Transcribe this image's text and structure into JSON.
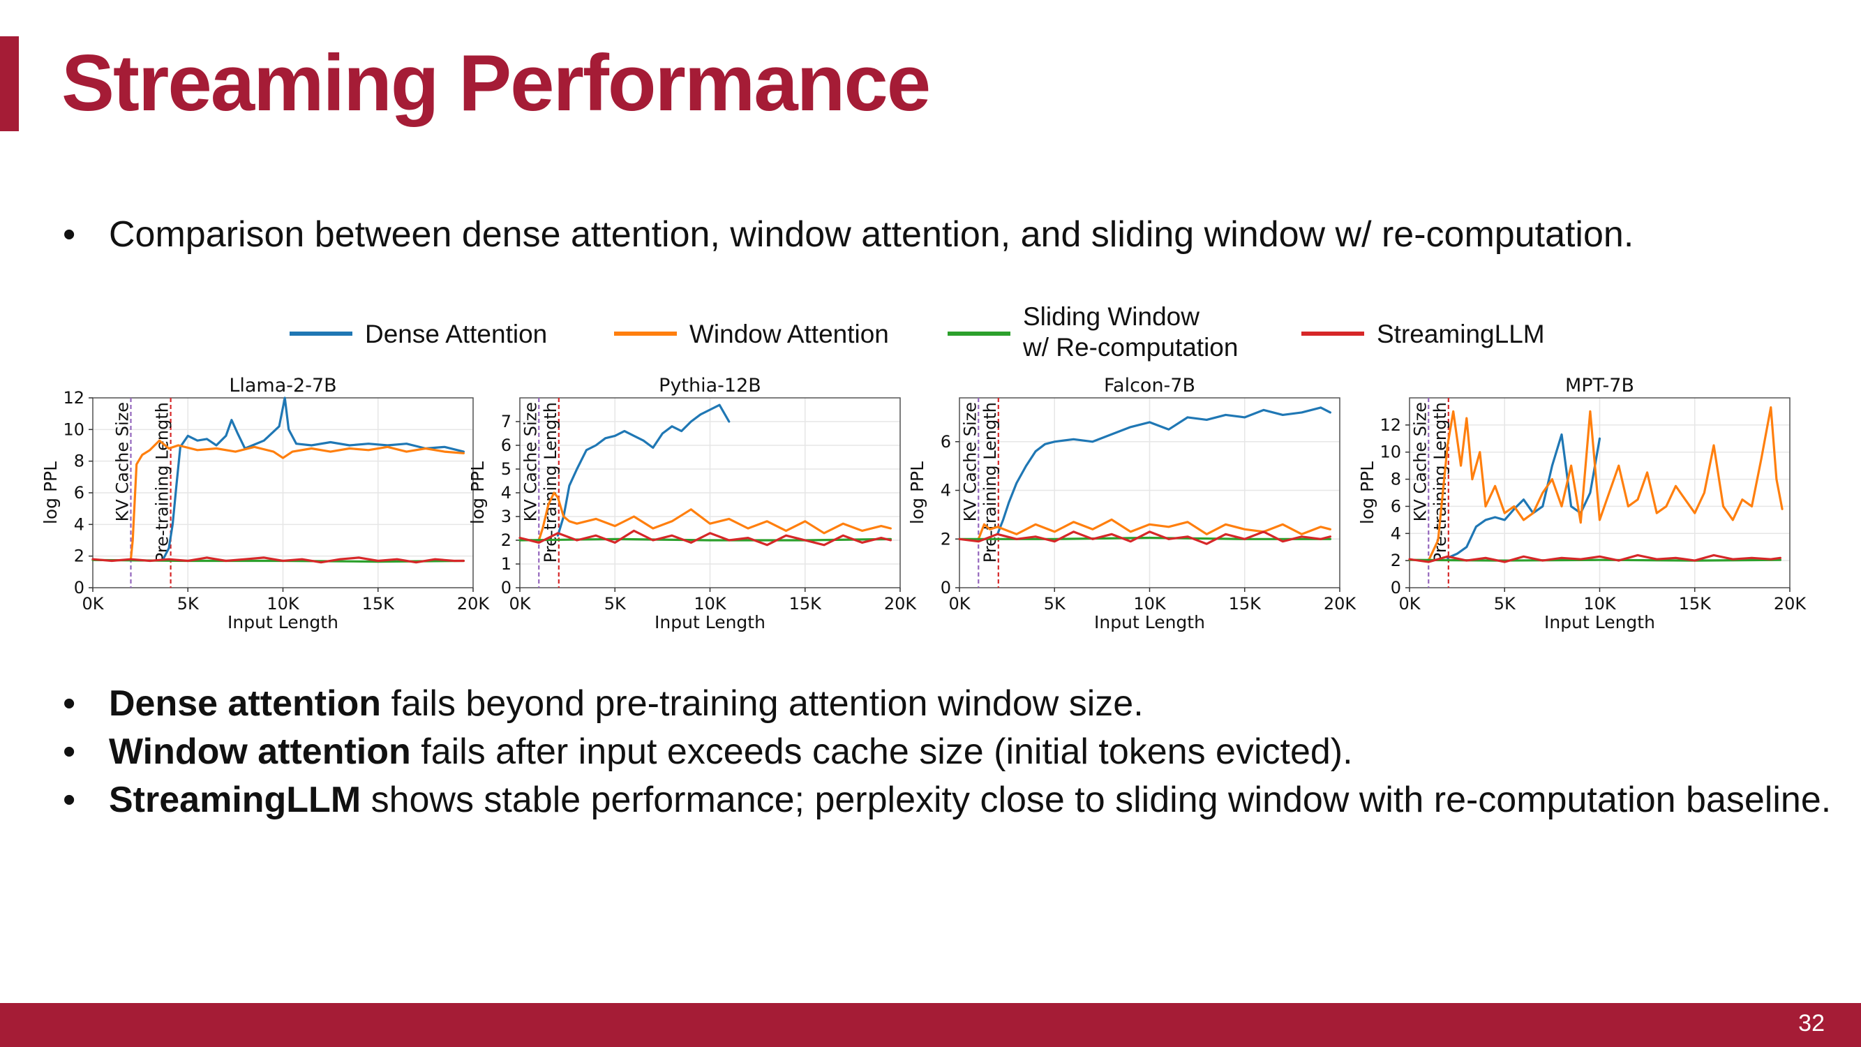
{
  "slide": {
    "title": "Streaming Performance",
    "intro_bullet": "Comparison between dense attention, window attention, and sliding window w/ re-computation.",
    "bullets": [
      {
        "bold": "Dense attention",
        "rest": " fails beyond pre-training attention window size."
      },
      {
        "bold": "Window attention",
        "rest": " fails after input exceeds cache size (initial tokens evicted)."
      },
      {
        "bold": "StreamingLLM",
        "rest": " shows stable performance; perplexity close to sliding window with re-computation baseline."
      }
    ],
    "page_number": "32",
    "bullet_char": "•"
  },
  "legend": [
    {
      "label": "Dense Attention",
      "color": "#1f77b4"
    },
    {
      "label": "Window Attention",
      "color": "#ff7f0e"
    },
    {
      "label": "Sliding Window\nw/ Re-computation",
      "color": "#2ca02c"
    },
    {
      "label": "StreamingLLM",
      "color": "#d62728"
    }
  ],
  "colors": {
    "accent": "#a51c36",
    "kv_line": "#9467bd",
    "pretrain_line": "#d62728",
    "grid": "#e6e6e6"
  },
  "chart_data": [
    {
      "type": "line",
      "title": "Llama-2-7B",
      "xlabel": "Input Length",
      "ylabel": "log PPL",
      "xlim": [
        0,
        20000
      ],
      "ylim": [
        0,
        12
      ],
      "xticks": [
        0,
        5000,
        10000,
        15000,
        20000
      ],
      "xtick_labels": [
        "0K",
        "5K",
        "10K",
        "15K",
        "20K"
      ],
      "yticks": [
        0,
        2,
        4,
        6,
        8,
        10,
        12
      ],
      "grid": true,
      "vlines": [
        {
          "x": 2000,
          "label": "KV Cache Size",
          "color": "#9467bd"
        },
        {
          "x": 4096,
          "label": "Pre-training Length",
          "color": "#d62728"
        }
      ],
      "series": [
        {
          "name": "Dense Attention",
          "color": "#1f77b4",
          "x": [
            3700,
            4000,
            4200,
            4400,
            4600,
            5000,
            5500,
            6000,
            6500,
            7000,
            7300,
            7600,
            8000,
            9000,
            9800,
            10100,
            10300,
            10700,
            11500,
            12500,
            13500,
            14500,
            15500,
            16500,
            17500,
            18500,
            19500
          ],
          "y": [
            1.8,
            2.5,
            4.0,
            6.5,
            8.9,
            9.6,
            9.3,
            9.4,
            9.0,
            9.6,
            10.6,
            9.8,
            8.8,
            9.3,
            10.2,
            12.0,
            10.0,
            9.1,
            9.0,
            9.2,
            9.0,
            9.1,
            9.0,
            9.1,
            8.8,
            8.9,
            8.6
          ]
        },
        {
          "name": "Window Attention",
          "color": "#ff7f0e",
          "x": [
            2000,
            2100,
            2300,
            2600,
            3000,
            3500,
            4000,
            4500,
            5500,
            6500,
            7500,
            8500,
            9500,
            10000,
            10500,
            11500,
            12500,
            13500,
            14500,
            15500,
            16500,
            17500,
            18500,
            19500
          ],
          "y": [
            1.8,
            3.0,
            7.8,
            8.4,
            8.7,
            9.3,
            8.8,
            9.0,
            8.7,
            8.8,
            8.6,
            8.9,
            8.6,
            8.2,
            8.6,
            8.8,
            8.6,
            8.8,
            8.7,
            8.9,
            8.6,
            8.8,
            8.6,
            8.5
          ]
        },
        {
          "name": "Sliding Window w/ Re-computation",
          "color": "#2ca02c",
          "x": [
            0,
            5000,
            10000,
            15000,
            19500
          ],
          "y": [
            1.75,
            1.7,
            1.7,
            1.65,
            1.7
          ]
        },
        {
          "name": "StreamingLLM",
          "color": "#d62728",
          "x": [
            0,
            1000,
            2000,
            3000,
            4000,
            5000,
            6000,
            7000,
            8000,
            9000,
            10000,
            11000,
            12000,
            13000,
            14000,
            15000,
            16000,
            17000,
            18000,
            19000,
            19500
          ],
          "y": [
            1.8,
            1.7,
            1.8,
            1.7,
            1.8,
            1.7,
            1.9,
            1.7,
            1.8,
            1.9,
            1.7,
            1.8,
            1.6,
            1.8,
            1.9,
            1.7,
            1.8,
            1.6,
            1.8,
            1.7,
            1.7
          ]
        }
      ]
    },
    {
      "type": "line",
      "title": "Pythia-12B",
      "xlabel": "Input Length",
      "ylabel": "log PPL",
      "xlim": [
        0,
        20000
      ],
      "ylim": [
        0,
        8
      ],
      "xticks": [
        0,
        5000,
        10000,
        15000,
        20000
      ],
      "xtick_labels": [
        "0K",
        "5K",
        "10K",
        "15K",
        "20K"
      ],
      "yticks": [
        0,
        1,
        2,
        3,
        4,
        5,
        6,
        7
      ],
      "grid": true,
      "vlines": [
        {
          "x": 1000,
          "label": "KV Cache Size",
          "color": "#9467bd"
        },
        {
          "x": 2048,
          "label": "Pre-training Length",
          "color": "#d62728"
        }
      ],
      "series": [
        {
          "name": "Dense Attention",
          "color": "#1f77b4",
          "x": [
            2000,
            2300,
            2600,
            3000,
            3500,
            4000,
            4500,
            5000,
            5500,
            6000,
            6500,
            7000,
            7500,
            8000,
            8500,
            9000,
            9500,
            10000,
            10500,
            11000
          ],
          "y": [
            2.2,
            3.0,
            4.3,
            5.0,
            5.8,
            6.0,
            6.3,
            6.4,
            6.6,
            6.4,
            6.2,
            5.9,
            6.5,
            6.8,
            6.6,
            7.0,
            7.3,
            7.5,
            7.7,
            7.0
          ]
        },
        {
          "name": "Window Attention",
          "color": "#ff7f0e",
          "x": [
            1000,
            1200,
            1500,
            1800,
            2000,
            2300,
            2600,
            3000,
            4000,
            5000,
            6000,
            7000,
            8000,
            9000,
            10000,
            11000,
            12000,
            13000,
            14000,
            15000,
            16000,
            17000,
            18000,
            19000,
            19500
          ],
          "y": [
            2.0,
            2.5,
            3.5,
            4.0,
            3.8,
            3.0,
            2.8,
            2.7,
            2.9,
            2.6,
            3.0,
            2.5,
            2.8,
            3.3,
            2.7,
            2.9,
            2.5,
            2.8,
            2.4,
            2.8,
            2.3,
            2.7,
            2.4,
            2.6,
            2.5
          ]
        },
        {
          "name": "Sliding Window w/ Re-computation",
          "color": "#2ca02c",
          "x": [
            0,
            5000,
            10000,
            15000,
            19500
          ],
          "y": [
            2.0,
            2.05,
            2.0,
            2.0,
            2.05
          ]
        },
        {
          "name": "StreamingLLM",
          "color": "#d62728",
          "x": [
            0,
            1000,
            2000,
            3000,
            4000,
            5000,
            6000,
            7000,
            8000,
            9000,
            10000,
            11000,
            12000,
            13000,
            14000,
            15000,
            16000,
            17000,
            18000,
            19000,
            19500
          ],
          "y": [
            2.1,
            1.9,
            2.3,
            2.0,
            2.2,
            1.9,
            2.4,
            2.0,
            2.2,
            1.9,
            2.3,
            2.0,
            2.1,
            1.8,
            2.2,
            2.0,
            1.8,
            2.2,
            1.9,
            2.1,
            2.0
          ]
        }
      ]
    },
    {
      "type": "line",
      "title": "Falcon-7B",
      "xlabel": "Input Length",
      "ylabel": "log PPL",
      "xlim": [
        0,
        20000
      ],
      "ylim": [
        0,
        7.8
      ],
      "xticks": [
        0,
        5000,
        10000,
        15000,
        20000
      ],
      "xtick_labels": [
        "0K",
        "5K",
        "10K",
        "15K",
        "20K"
      ],
      "yticks": [
        0,
        2,
        4,
        6
      ],
      "grid": true,
      "vlines": [
        {
          "x": 1000,
          "label": "KV Cache Size",
          "color": "#9467bd"
        },
        {
          "x": 2048,
          "label": "Pre-training Length",
          "color": "#d62728"
        }
      ],
      "series": [
        {
          "name": "Dense Attention",
          "color": "#1f77b4",
          "x": [
            2000,
            2300,
            2600,
            3000,
            3500,
            4000,
            4500,
            5000,
            6000,
            7000,
            8000,
            9000,
            10000,
            11000,
            12000,
            13000,
            14000,
            15000,
            16000,
            17000,
            18000,
            19000,
            19500
          ],
          "y": [
            2.2,
            2.8,
            3.5,
            4.3,
            5.0,
            5.6,
            5.9,
            6.0,
            6.1,
            6.0,
            6.3,
            6.6,
            6.8,
            6.5,
            7.0,
            6.9,
            7.1,
            7.0,
            7.3,
            7.1,
            7.2,
            7.4,
            7.2
          ]
        },
        {
          "name": "Window Attention",
          "color": "#ff7f0e",
          "x": [
            1000,
            1300,
            1600,
            2000,
            3000,
            4000,
            5000,
            6000,
            7000,
            8000,
            9000,
            10000,
            11000,
            12000,
            13000,
            14000,
            15000,
            16000,
            17000,
            18000,
            19000,
            19500
          ],
          "y": [
            2.0,
            2.6,
            2.4,
            2.5,
            2.2,
            2.6,
            2.3,
            2.7,
            2.4,
            2.8,
            2.3,
            2.6,
            2.5,
            2.7,
            2.2,
            2.6,
            2.4,
            2.3,
            2.6,
            2.2,
            2.5,
            2.4
          ]
        },
        {
          "name": "Sliding Window w/ Re-computation",
          "color": "#2ca02c",
          "x": [
            0,
            5000,
            10000,
            15000,
            19500
          ],
          "y": [
            2.0,
            2.0,
            2.05,
            2.0,
            2.0
          ]
        },
        {
          "name": "StreamingLLM",
          "color": "#d62728",
          "x": [
            0,
            1000,
            2000,
            3000,
            4000,
            5000,
            6000,
            7000,
            8000,
            9000,
            10000,
            11000,
            12000,
            13000,
            14000,
            15000,
            16000,
            17000,
            18000,
            19000,
            19500
          ],
          "y": [
            2.0,
            1.9,
            2.2,
            2.0,
            2.1,
            1.9,
            2.3,
            2.0,
            2.2,
            1.9,
            2.3,
            2.0,
            2.1,
            1.8,
            2.2,
            2.0,
            2.3,
            1.9,
            2.1,
            2.0,
            2.1
          ]
        }
      ]
    },
    {
      "type": "line",
      "title": "MPT-7B",
      "xlabel": "Input Length",
      "ylabel": "log PPL",
      "xlim": [
        0,
        20000
      ],
      "ylim": [
        0,
        14
      ],
      "xticks": [
        0,
        5000,
        10000,
        15000,
        20000
      ],
      "xtick_labels": [
        "0K",
        "5K",
        "10K",
        "15K",
        "20K"
      ],
      "yticks": [
        0,
        2,
        4,
        6,
        8,
        10,
        12
      ],
      "grid": true,
      "vlines": [
        {
          "x": 1000,
          "label": "KV Cache Size",
          "color": "#9467bd"
        },
        {
          "x": 2048,
          "label": "Pre-training Length",
          "color": "#d62728"
        }
      ],
      "series": [
        {
          "name": "Dense Attention",
          "color": "#1f77b4",
          "x": [
            2000,
            2500,
            3000,
            3500,
            4000,
            4500,
            5000,
            5500,
            6000,
            6500,
            7000,
            7500,
            8000,
            8500,
            9000,
            9500,
            10000
          ],
          "y": [
            2.2,
            2.5,
            3.0,
            4.5,
            5.0,
            5.2,
            5.0,
            5.8,
            6.5,
            5.5,
            6.0,
            9.0,
            11.3,
            6.0,
            5.5,
            7.0,
            11.0
          ]
        },
        {
          "name": "Window Attention",
          "color": "#ff7f0e",
          "x": [
            1000,
            1500,
            2000,
            2300,
            2700,
            3000,
            3300,
            3700,
            4000,
            4500,
            5000,
            5500,
            6000,
            6500,
            7000,
            7500,
            8000,
            8500,
            9000,
            9500,
            10000,
            10500,
            11000,
            11500,
            12000,
            12500,
            13000,
            13500,
            14000,
            14500,
            15000,
            15500,
            16000,
            16500,
            17000,
            17500,
            18000,
            18500,
            19000,
            19300,
            19600
          ],
          "y": [
            2.0,
            3.5,
            10.5,
            13.0,
            9.0,
            12.5,
            8.0,
            10.0,
            6.0,
            7.5,
            5.5,
            6.0,
            5.0,
            5.5,
            7.0,
            8.0,
            6.0,
            9.0,
            4.8,
            13.0,
            5.0,
            7.0,
            9.0,
            6.0,
            6.5,
            8.5,
            5.5,
            6.0,
            7.5,
            6.5,
            5.5,
            7.0,
            10.5,
            6.0,
            5.0,
            6.5,
            6.0,
            9.5,
            13.3,
            8.0,
            5.8
          ]
        },
        {
          "name": "Sliding Window w/ Re-computation",
          "color": "#2ca02c",
          "x": [
            0,
            5000,
            10000,
            15000,
            19500
          ],
          "y": [
            2.05,
            2.0,
            2.05,
            2.0,
            2.05
          ]
        },
        {
          "name": "StreamingLLM",
          "color": "#d62728",
          "x": [
            0,
            1000,
            2000,
            3000,
            4000,
            5000,
            6000,
            7000,
            8000,
            9000,
            10000,
            11000,
            12000,
            13000,
            14000,
            15000,
            16000,
            17000,
            18000,
            19000,
            19500
          ],
          "y": [
            2.1,
            1.9,
            2.3,
            2.0,
            2.2,
            1.9,
            2.3,
            2.0,
            2.2,
            2.1,
            2.3,
            2.0,
            2.4,
            2.1,
            2.2,
            2.0,
            2.4,
            2.1,
            2.2,
            2.1,
            2.2
          ]
        }
      ]
    }
  ]
}
